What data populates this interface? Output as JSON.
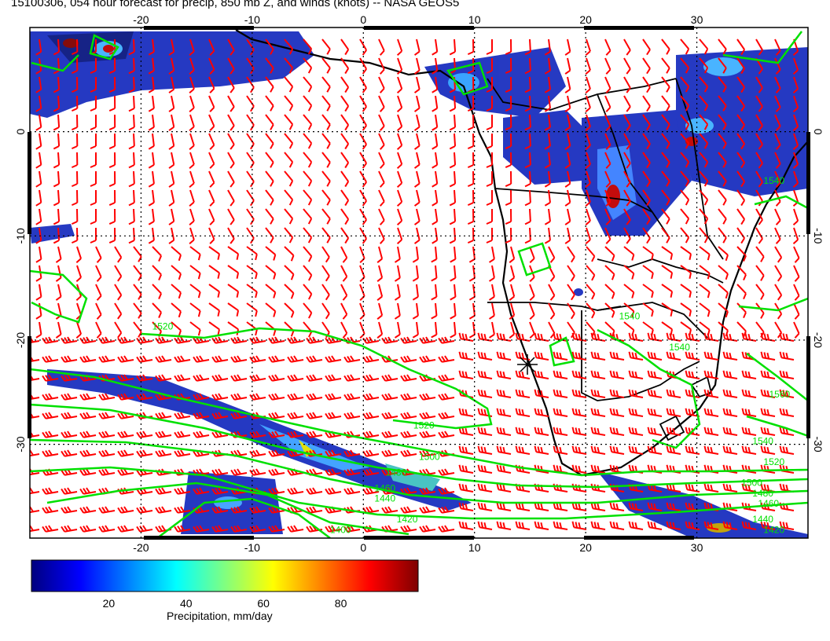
{
  "title": "15100306, 054 hour forecast for precip, 850 mb Z, and winds (knots) -- NASA GEOS5",
  "map": {
    "lon_ticks": [
      "-20",
      "-10",
      "0",
      "10",
      "20",
      "30"
    ],
    "lat_ticks": [
      "0",
      "-10",
      "-20",
      "-30"
    ],
    "lon_values": [
      -20,
      -10,
      0,
      10,
      20,
      30
    ],
    "lat_values": [
      0,
      -10,
      -20,
      -30
    ],
    "lon_range": [
      -30,
      40
    ],
    "lat_range": [
      -39,
      10
    ],
    "contour_color": "#00e000",
    "wind_barb_color": "#ff0000",
    "coast_color": "#000000",
    "contour_labels": [
      {
        "text": "1520",
        "lon": -19,
        "lat": -19
      },
      {
        "text": "1520",
        "lon": 4.5,
        "lat": -28.5
      },
      {
        "text": "1500",
        "lon": 5,
        "lat": -31.5
      },
      {
        "text": "1480",
        "lon": 2,
        "lat": -33
      },
      {
        "text": "1460",
        "lon": 1,
        "lat": -34.5
      },
      {
        "text": "1440",
        "lon": 1,
        "lat": -35.5
      },
      {
        "text": "1420",
        "lon": 3,
        "lat": -37.5
      },
      {
        "text": "1400",
        "lon": -3,
        "lat": -38.5
      },
      {
        "text": "1560",
        "lon": 36.5,
        "lat": -25.5
      },
      {
        "text": "1540",
        "lon": 35,
        "lat": -30
      },
      {
        "text": "1520",
        "lon": 36,
        "lat": -32
      },
      {
        "text": "1500",
        "lon": 34,
        "lat": -34
      },
      {
        "text": "1480",
        "lon": 35,
        "lat": -35
      },
      {
        "text": "1460",
        "lon": 35.5,
        "lat": -36
      },
      {
        "text": "1440",
        "lon": 35,
        "lat": -37.5
      },
      {
        "text": "1420",
        "lon": 36,
        "lat": -38.5
      },
      {
        "text": "1540",
        "lon": 23,
        "lat": -18
      },
      {
        "text": "1540",
        "lon": 27.5,
        "lat": -21
      },
      {
        "text": "1540",
        "lon": 36,
        "lat": -5
      }
    ]
  },
  "colorbar": {
    "label": "Precipitation, mm/day",
    "ticks": [
      "20",
      "40",
      "60",
      "80"
    ],
    "values": [
      20,
      40,
      60,
      80
    ],
    "range": [
      0,
      100
    ],
    "colors": [
      "#00007f",
      "#0000ff",
      "#0080ff",
      "#00ffff",
      "#80ff80",
      "#ffff00",
      "#ff8000",
      "#ff0000",
      "#7f0000"
    ]
  }
}
